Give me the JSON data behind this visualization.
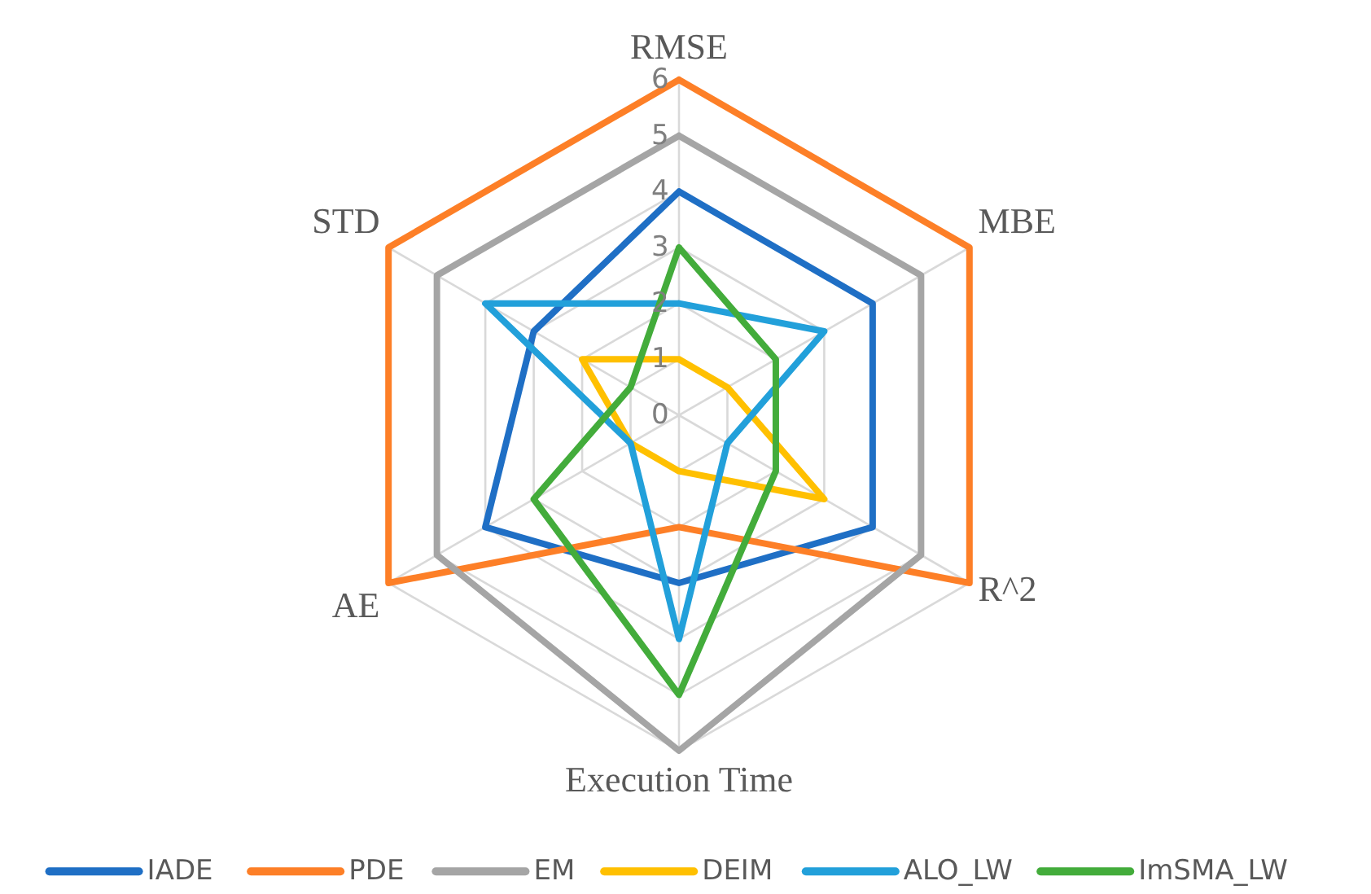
{
  "chart_data": {
    "type": "radar",
    "categories": [
      "RMSE",
      "MBE",
      "R^2",
      "Execution Time",
      "AE",
      "STD"
    ],
    "series": [
      {
        "name": "IADE",
        "color": "#1f6fc5",
        "values": [
          4,
          4,
          4,
          3,
          4,
          3
        ]
      },
      {
        "name": "PDE",
        "color": "#fd7f27",
        "values": [
          6,
          6,
          6,
          2,
          6,
          6
        ]
      },
      {
        "name": "EM",
        "color": "#a5a5a5",
        "values": [
          5,
          5,
          5,
          6,
          5,
          5
        ]
      },
      {
        "name": "DEIM",
        "color": "#ffc000",
        "values": [
          1,
          1,
          3,
          1,
          1,
          2
        ]
      },
      {
        "name": "ALO_LW",
        "color": "#22a0da",
        "values": [
          2,
          3,
          1,
          4,
          1,
          4
        ]
      },
      {
        "name": "ImSMA_LW",
        "color": "#43ac3b",
        "values": [
          3,
          2,
          2,
          5,
          3,
          1
        ]
      }
    ],
    "ylim": [
      0,
      6
    ],
    "yticks": [
      0,
      1,
      2,
      3,
      4,
      5,
      6
    ],
    "grid": true,
    "legend": "bottom",
    "marker": "none",
    "line_style": "solid"
  }
}
